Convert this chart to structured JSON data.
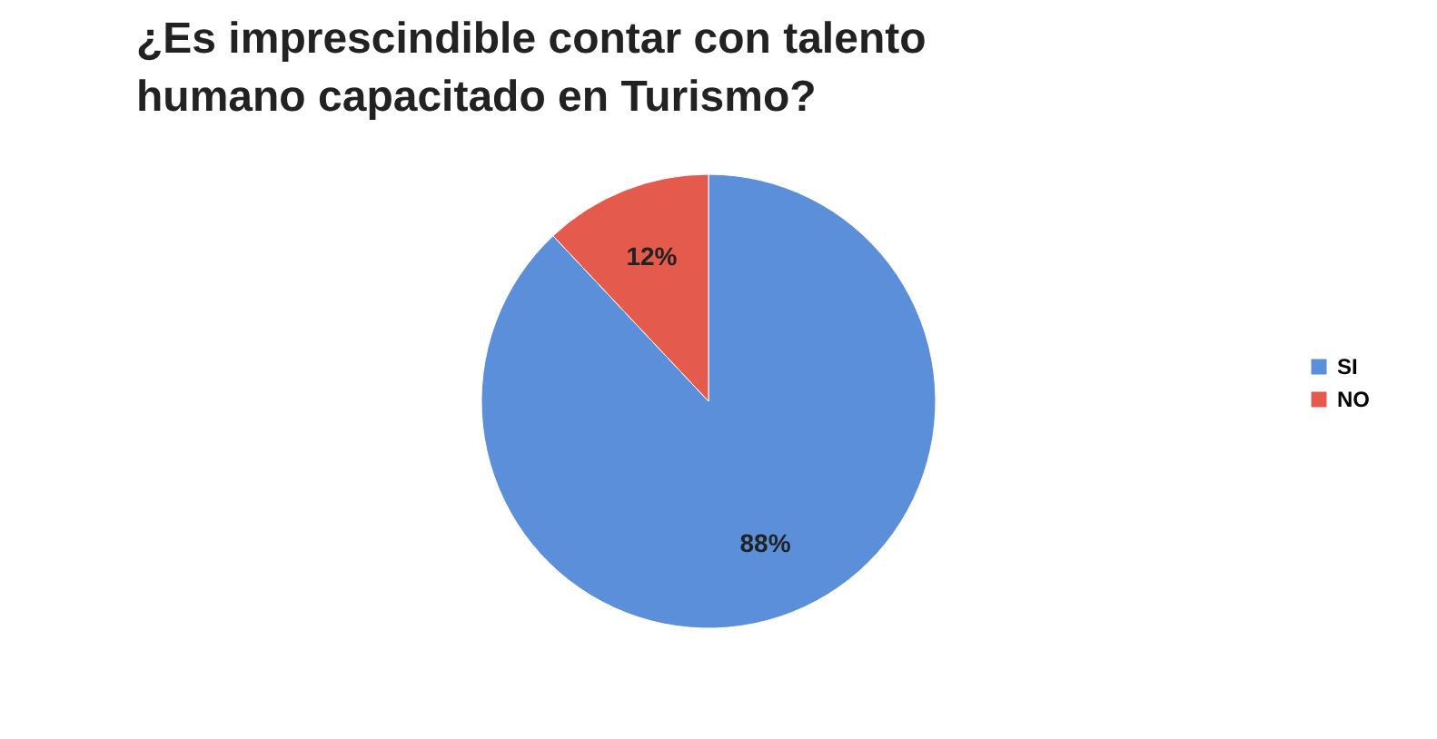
{
  "chart_data": {
    "type": "pie",
    "title": "¿Es imprescindible contar con talento humano capacitado en Turismo?",
    "categories": [
      "SI",
      "NO"
    ],
    "values": [
      88,
      12
    ],
    "colors": [
      "#5b8fd9",
      "#e45a4c"
    ],
    "value_labels": [
      "88%",
      "12%"
    ],
    "legend": "right"
  }
}
